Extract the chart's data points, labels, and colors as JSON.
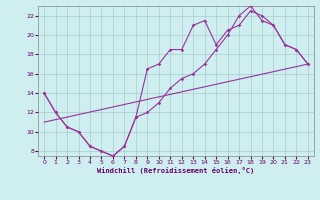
{
  "xlabel": "Windchill (Refroidissement éolien,°C)",
  "bg_color": "#ceeef0",
  "line_color": "#993399",
  "grid_color": "#aacccc",
  "xlim": [
    -0.5,
    23.5
  ],
  "ylim": [
    7.5,
    23.0
  ],
  "xticks": [
    0,
    1,
    2,
    3,
    4,
    5,
    6,
    7,
    8,
    9,
    10,
    11,
    12,
    13,
    14,
    15,
    16,
    17,
    18,
    19,
    20,
    21,
    22,
    23
  ],
  "yticks": [
    8,
    10,
    12,
    14,
    16,
    18,
    20,
    22
  ],
  "line1_x": [
    0,
    1,
    2,
    3,
    4,
    5,
    6,
    7,
    8,
    9,
    10,
    11,
    12,
    13,
    14,
    15,
    16,
    17,
    18,
    19,
    20,
    21,
    22,
    23
  ],
  "line1_y": [
    14.0,
    12.0,
    10.5,
    10.0,
    8.5,
    8.0,
    7.5,
    8.5,
    11.5,
    16.5,
    17.0,
    18.5,
    18.5,
    21.0,
    21.5,
    19.0,
    20.5,
    21.0,
    22.5,
    22.0,
    21.0,
    19.0,
    18.5,
    17.0
  ],
  "line2_x": [
    0,
    1,
    2,
    3,
    4,
    5,
    6,
    7,
    8,
    9,
    10,
    11,
    12,
    13,
    14,
    15,
    16,
    17,
    18,
    19,
    20,
    21,
    22,
    23
  ],
  "line2_y": [
    14.0,
    12.0,
    10.5,
    10.0,
    8.5,
    8.0,
    7.5,
    8.5,
    11.5,
    12.0,
    13.0,
    14.5,
    15.5,
    16.0,
    17.0,
    18.5,
    20.0,
    22.0,
    23.0,
    21.5,
    21.0,
    19.0,
    18.5,
    17.0
  ],
  "line3_x": [
    0,
    23
  ],
  "line3_y": [
    11.0,
    17.0
  ]
}
